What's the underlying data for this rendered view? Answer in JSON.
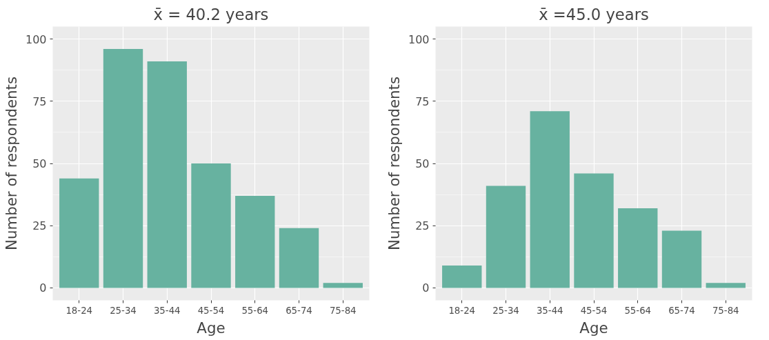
{
  "chart_data": [
    {
      "type": "bar",
      "title": "x̄ = 40.2 years",
      "xlabel": "Age",
      "ylabel": "Number of respondents",
      "categories": [
        "18-24",
        "25-34",
        "35-44",
        "45-54",
        "55-64",
        "65-74",
        "75-84"
      ],
      "values": [
        44,
        96,
        91,
        50,
        37,
        24,
        2
      ],
      "color": "#67b2a0",
      "ylim": [
        -5,
        105
      ],
      "yticks": [
        0,
        25,
        50,
        75,
        100
      ],
      "grid": true
    },
    {
      "type": "bar",
      "title": "x̄ =45.0 years",
      "xlabel": "Age",
      "ylabel": "Number of respondents",
      "categories": [
        "18-24",
        "25-34",
        "35-44",
        "45-54",
        "55-64",
        "65-74",
        "75-84"
      ],
      "values": [
        9,
        41,
        71,
        46,
        32,
        23,
        2
      ],
      "color": "#67b2a0",
      "ylim": [
        -5,
        105
      ],
      "yticks": [
        0,
        25,
        50,
        75,
        100
      ],
      "grid": true
    }
  ]
}
